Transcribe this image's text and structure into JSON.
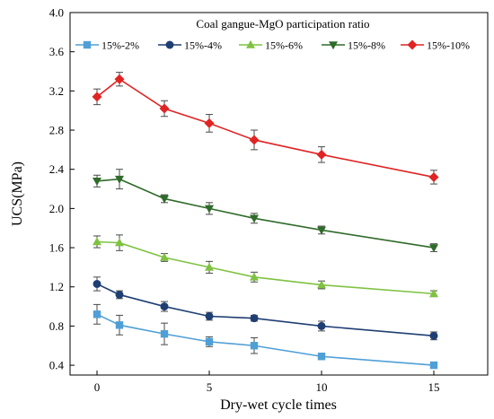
{
  "chart_data": {
    "type": "line",
    "title": "",
    "xlabel": "Dry-wet cycle times",
    "ylabel": "UCS(MPa)",
    "xlim": [
      -1.2,
      17.4
    ],
    "ylim": [
      0.3,
      4.0
    ],
    "xticks": [
      0,
      5,
      10,
      15
    ],
    "yticks": [
      0.4,
      0.8,
      1.2,
      1.6,
      2.0,
      2.4,
      2.8,
      3.2,
      3.6,
      4.0
    ],
    "grid": false,
    "legend_title": "Coal gangue-MgO participation ratio",
    "legend_placement": "top",
    "x": [
      0,
      1,
      3,
      5,
      7,
      10,
      15
    ],
    "series": [
      {
        "name": "15%-2%",
        "marker": "square",
        "color": "#4f9fd6",
        "values": [
          0.92,
          0.81,
          0.72,
          0.64,
          0.6,
          0.49,
          0.4
        ],
        "errors": [
          0.1,
          0.1,
          0.11,
          0.05,
          0.08,
          0.03,
          0.02
        ]
      },
      {
        "name": "15%-4%",
        "marker": "circle",
        "color": "#1f3f73",
        "values": [
          1.23,
          1.12,
          1.0,
          0.9,
          0.88,
          0.8,
          0.7
        ],
        "errors": [
          0.07,
          0.04,
          0.05,
          0.04,
          0.03,
          0.05,
          0.04
        ]
      },
      {
        "name": "15%-6%",
        "marker": "triangle-up",
        "color": "#7fc241",
        "values": [
          1.66,
          1.65,
          1.5,
          1.4,
          1.3,
          1.22,
          1.13
        ],
        "errors": [
          0.06,
          0.08,
          0.04,
          0.06,
          0.05,
          0.04,
          0.03
        ]
      },
      {
        "name": "15%-8%",
        "marker": "triangle-down",
        "color": "#2f6b2a",
        "values": [
          2.28,
          2.3,
          2.1,
          2.0,
          1.9,
          1.78,
          1.6
        ],
        "errors": [
          0.06,
          0.1,
          0.04,
          0.06,
          0.05,
          0.04,
          0.04
        ]
      },
      {
        "name": "15%-10%",
        "marker": "diamond",
        "color": "#e02424",
        "values": [
          3.14,
          3.32,
          3.02,
          2.87,
          2.7,
          2.55,
          2.32
        ],
        "errors": [
          0.08,
          0.07,
          0.08,
          0.09,
          0.1,
          0.08,
          0.07
        ]
      }
    ]
  }
}
